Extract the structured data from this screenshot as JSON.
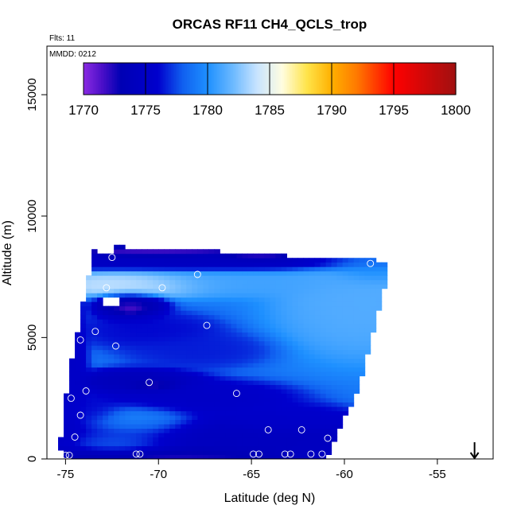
{
  "chart_data": {
    "type": "heatmap",
    "title": "ORCAS RF11 CH4_QCLS_trop",
    "subtitle_flights": "Flts: 11",
    "subtitle_date": "MMDD: 0212",
    "xlabel": "Latitude (deg N)",
    "ylabel": "Altitude (m)",
    "xlim": [
      -76.0,
      -52.0
    ],
    "ylim": [
      0,
      17000
    ],
    "x_ticks": [
      -75,
      -70,
      -65,
      -60,
      -55
    ],
    "x_tick_labels": [
      "-75",
      "-70",
      "-65",
      "-60",
      "-55"
    ],
    "y_ticks": [
      0,
      5000,
      10000,
      15000
    ],
    "y_tick_labels": [
      "0",
      "5000",
      "10000",
      "15000"
    ],
    "colorbar": {
      "min": 1770,
      "max": 1800,
      "ticks": [
        1770,
        1775,
        1780,
        1785,
        1790,
        1795,
        1800
      ],
      "tick_labels": [
        "1770",
        "1775",
        "1780",
        "1785",
        "1790",
        "1795",
        "1800"
      ],
      "stops": [
        {
          "v": 1770,
          "color": "#8a2be2"
        },
        {
          "v": 1771.5,
          "color": "#4b0fc8"
        },
        {
          "v": 1773,
          "color": "#0000b4"
        },
        {
          "v": 1776,
          "color": "#0000cd"
        },
        {
          "v": 1778,
          "color": "#1060f0"
        },
        {
          "v": 1780,
          "color": "#1e90ff"
        },
        {
          "v": 1782,
          "color": "#6ab8ff"
        },
        {
          "v": 1784,
          "color": "#c8e4ff"
        },
        {
          "v": 1786,
          "color": "#fffde0"
        },
        {
          "v": 1788,
          "color": "#ffe44a"
        },
        {
          "v": 1790,
          "color": "#ffb000"
        },
        {
          "v": 1792,
          "color": "#ff7a00"
        },
        {
          "v": 1795,
          "color": "#ff0000"
        },
        {
          "v": 1800,
          "color": "#a01010"
        }
      ]
    },
    "field_features": [
      {
        "name": "low-mixed",
        "lat": -66,
        "alt": 900,
        "value": 1774,
        "sx": 8,
        "sy": 600,
        "amp": 1
      },
      {
        "name": "surface-low-band",
        "lat": -70,
        "alt": 150,
        "value": 1772,
        "sx": 5,
        "sy": 250,
        "amp": 1
      },
      {
        "name": "mid-dark-band",
        "lat": -68,
        "alt": 2500,
        "value": 1775,
        "sx": 3.5,
        "sy": 500,
        "amp": 1
      },
      {
        "name": "mid-dark-band-2",
        "lat": -63,
        "alt": 1600,
        "value": 1775.5,
        "sx": 2.5,
        "sy": 450,
        "amp": 1
      },
      {
        "name": "dark-tongue",
        "lat": -71,
        "alt": 3200,
        "value": 1773.5,
        "sx": 2.2,
        "sy": 350,
        "amp": 1
      },
      {
        "name": "dark-tongue-2",
        "lat": -70.3,
        "alt": 3050,
        "value": 1771,
        "sx": 0.9,
        "sy": 150,
        "amp": 1
      },
      {
        "name": "mid-band-left",
        "lat": -74,
        "alt": 2000,
        "value": 1776,
        "sx": 1.5,
        "sy": 450,
        "amp": 1
      },
      {
        "name": "arc-upper",
        "lat": -70.5,
        "alt": 5300,
        "value": 1776,
        "sx": 2.5,
        "sy": 500,
        "amp": 1
      },
      {
        "name": "arc-upper-2",
        "lat": -68,
        "alt": 4500,
        "value": 1776.5,
        "sx": 2.5,
        "sy": 500,
        "amp": 1
      },
      {
        "name": "dark-pocket",
        "lat": -71.5,
        "alt": 6300,
        "value": 1772.5,
        "sx": 1.2,
        "sy": 400,
        "amp": 1
      },
      {
        "name": "dark-pocket-purple",
        "lat": -71.5,
        "alt": 6200,
        "value": 1770.5,
        "sx": 0.5,
        "sy": 150,
        "amp": 1
      },
      {
        "name": "white-layer",
        "lat": -71.5,
        "alt": 7200,
        "value": 1784.5,
        "sx": 2.8,
        "sy": 330,
        "amp": 1
      },
      {
        "name": "light-layer",
        "lat": -66,
        "alt": 7300,
        "value": 1781,
        "sx": 5,
        "sy": 400,
        "amp": 1
      },
      {
        "name": "top-dark",
        "lat": -66,
        "alt": 8100,
        "value": 1774,
        "sx": 7,
        "sy": 250,
        "amp": 1
      },
      {
        "name": "top-purple",
        "lat": -70,
        "alt": 8550,
        "value": 1771.5,
        "sx": 3,
        "sy": 150,
        "amp": 1
      },
      {
        "name": "top-purple-2",
        "lat": -64.5,
        "alt": 8400,
        "value": 1771.5,
        "sx": 1.5,
        "sy": 150,
        "amp": 1
      },
      {
        "name": "right-light",
        "lat": -59,
        "alt": 6500,
        "value": 1781.5,
        "sx": 3,
        "sy": 1500,
        "amp": 1
      },
      {
        "name": "right-upper",
        "lat": -58.5,
        "alt": 7800,
        "value": 1779.5,
        "sx": 1.5,
        "sy": 400,
        "amp": 1
      },
      {
        "name": "surface-cyan",
        "lat": -72,
        "alt": 700,
        "value": 1779,
        "sx": 2,
        "sy": 400,
        "amp": 1
      },
      {
        "name": "mid-cyan",
        "lat": -71,
        "alt": 1500,
        "value": 1780,
        "sx": 2,
        "sy": 500,
        "amp": 1
      },
      {
        "name": "left-edge-dark",
        "lat": -74.8,
        "alt": 3500,
        "value": 1775,
        "sx": 0.6,
        "sy": 2500,
        "amp": 1
      },
      {
        "name": "right-dark-low",
        "lat": -61,
        "alt": 400,
        "value": 1774.5,
        "sx": 1.5,
        "sy": 400,
        "amp": 1
      }
    ],
    "field_base": 1779,
    "domain_polygon": [
      [
        -75.2,
        0
      ],
      [
        -61.0,
        0
      ],
      [
        -59.2,
        3000
      ],
      [
        -58.2,
        6000
      ],
      [
        -57.6,
        7800
      ],
      [
        -57.6,
        8050
      ],
      [
        -58.2,
        8200
      ],
      [
        -64.0,
        8400
      ],
      [
        -69.5,
        8700
      ],
      [
        -73.4,
        8750
      ],
      [
        -73.6,
        8200
      ],
      [
        -74.0,
        6700
      ],
      [
        -74.8,
        3500
      ],
      [
        -75.3,
        700
      ]
    ],
    "blank_cells": [
      {
        "lat0": -72.9,
        "lat1": -72.2,
        "alt0": 6300,
        "alt1": 6650
      },
      {
        "lat0": -73.3,
        "lat1": -72.4,
        "alt0": 8400,
        "alt1": 8800
      }
    ],
    "observations": [
      {
        "lat": -72.5,
        "alt": 8300
      },
      {
        "lat": -72.8,
        "alt": 7050
      },
      {
        "lat": -69.8,
        "alt": 7050
      },
      {
        "lat": -67.9,
        "alt": 7600
      },
      {
        "lat": -58.6,
        "alt": 8050
      },
      {
        "lat": -74.2,
        "alt": 4900
      },
      {
        "lat": -73.4,
        "alt": 5250
      },
      {
        "lat": -67.4,
        "alt": 5500
      },
      {
        "lat": -72.3,
        "alt": 4650
      },
      {
        "lat": -70.5,
        "alt": 3150
      },
      {
        "lat": -65.8,
        "alt": 2700
      },
      {
        "lat": -73.9,
        "alt": 2800
      },
      {
        "lat": -74.7,
        "alt": 2500
      },
      {
        "lat": -74.2,
        "alt": 1800
      },
      {
        "lat": -64.1,
        "alt": 1200
      },
      {
        "lat": -62.3,
        "alt": 1200
      },
      {
        "lat": -74.5,
        "alt": 900
      },
      {
        "lat": -60.9,
        "alt": 850
      },
      {
        "lat": -75.0,
        "alt": 150
      },
      {
        "lat": -74.8,
        "alt": 150
      },
      {
        "lat": -71.2,
        "alt": 200
      },
      {
        "lat": -71.0,
        "alt": 200
      },
      {
        "lat": -64.9,
        "alt": 200
      },
      {
        "lat": -64.6,
        "alt": 200
      },
      {
        "lat": -63.2,
        "alt": 200
      },
      {
        "lat": -62.9,
        "alt": 200
      },
      {
        "lat": -61.8,
        "alt": 200
      },
      {
        "lat": -61.2,
        "alt": 200
      }
    ],
    "arrow_marker": {
      "lat": -53.0,
      "direction": "down"
    }
  }
}
